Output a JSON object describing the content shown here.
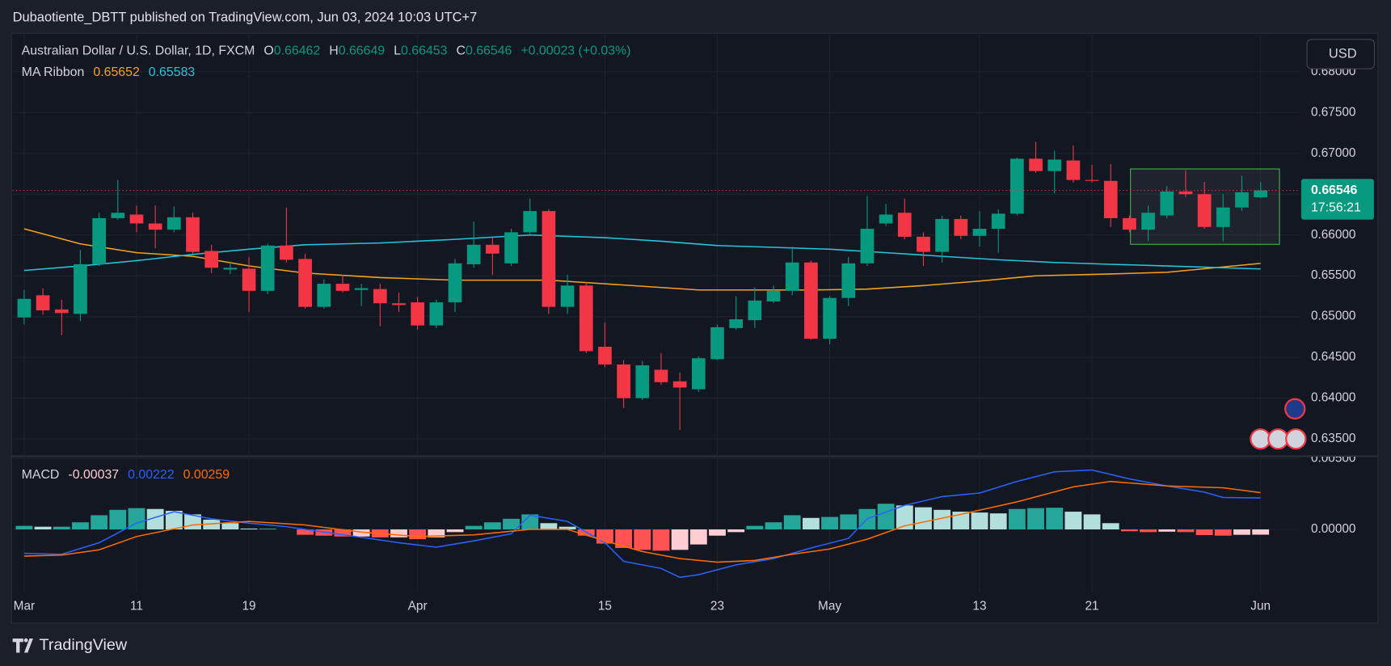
{
  "header": "Dubaotiente_DBTT published on TradingView.com, Jun 03, 2024 10:03 UTC+7",
  "currency_button": "USD",
  "footer_logo": "TradingView",
  "chart_data": [
    {
      "type": "candlestick",
      "title": "Australian Dollar / U.S. Dollar, 1D, FXCM",
      "ohlc_labels": [
        "O",
        "H",
        "L",
        "C"
      ],
      "change_label": "+0.00023 (+0.03%)",
      "countdown": "17:56:21",
      "up_color": "#089981",
      "down_color": "#f23645",
      "open": [
        0.64989,
        0.65261,
        0.65087,
        0.65033,
        0.65641,
        0.66206,
        0.6625,
        0.66141,
        0.66065,
        0.66217,
        0.65804,
        0.65576,
        0.65587,
        0.65315,
        0.6587,
        0.65706,
        0.65119,
        0.65402,
        0.65326,
        0.65337,
        0.65163,
        0.65174,
        0.64891,
        0.65174,
        0.65641,
        0.6588,
        0.65652,
        0.66033,
        0.66293,
        0.65119,
        0.6538,
        0.6463,
        0.64413,
        0.64,
        0.64348,
        0.64206,
        0.64109,
        0.64478,
        0.64859,
        0.64956,
        0.65185,
        0.65315,
        0.65663,
        0.64728,
        0.65228,
        0.65652,
        0.66141,
        0.66272,
        0.65978,
        0.65793,
        0.66196,
        0.65989,
        0.66076,
        0.66261,
        0.66935,
        0.66783,
        0.66913,
        0.66674,
        0.66663,
        0.66206,
        0.66065,
        0.66239,
        0.66533,
        0.665,
        0.66098,
        0.66337,
        0.66462
      ],
      "high": [
        0.65326,
        0.65348,
        0.65206,
        0.65815,
        0.66272,
        0.66674,
        0.66359,
        0.66359,
        0.66348,
        0.66272,
        0.6588,
        0.65674,
        0.65728,
        0.65891,
        0.66337,
        0.65772,
        0.65456,
        0.65511,
        0.65402,
        0.65402,
        0.65293,
        0.65239,
        0.65206,
        0.65706,
        0.66163,
        0.65967,
        0.66076,
        0.66446,
        0.66315,
        0.65511,
        0.65424,
        0.64924,
        0.64467,
        0.64456,
        0.64554,
        0.64315,
        0.64511,
        0.64902,
        0.6525,
        0.65359,
        0.6538,
        0.65859,
        0.65685,
        0.6525,
        0.65728,
        0.66478,
        0.6638,
        0.66446,
        0.66033,
        0.66239,
        0.66239,
        0.66293,
        0.66315,
        0.66946,
        0.67141,
        0.67033,
        0.67098,
        0.66859,
        0.6687,
        0.66239,
        0.66359,
        0.66598,
        0.66793,
        0.66652,
        0.665,
        0.66728,
        0.66649
      ],
      "low": [
        0.64902,
        0.65022,
        0.64772,
        0.64946,
        0.6562,
        0.66185,
        0.66033,
        0.65837,
        0.66033,
        0.65772,
        0.65533,
        0.65522,
        0.65054,
        0.65272,
        0.65663,
        0.65098,
        0.65098,
        0.65293,
        0.6513,
        0.6488,
        0.65054,
        0.64837,
        0.64859,
        0.65054,
        0.65598,
        0.65511,
        0.6562,
        0.66011,
        0.65033,
        0.65033,
        0.64554,
        0.6438,
        0.6388,
        0.63978,
        0.64163,
        0.63609,
        0.64076,
        0.64467,
        0.64837,
        0.64859,
        0.65163,
        0.65261,
        0.64717,
        0.64663,
        0.6513,
        0.6562,
        0.66109,
        0.65946,
        0.6562,
        0.65663,
        0.65946,
        0.65859,
        0.65783,
        0.66239,
        0.66761,
        0.66511,
        0.66641,
        0.66641,
        0.66098,
        0.66033,
        0.65924,
        0.66206,
        0.66467,
        0.66076,
        0.65924,
        0.66293,
        0.66453
      ],
      "close": [
        0.65217,
        0.65076,
        0.65043,
        0.65641,
        0.66206,
        0.66272,
        0.66141,
        0.66065,
        0.66217,
        0.65793,
        0.65598,
        0.65598,
        0.65315,
        0.6587,
        0.65696,
        0.65119,
        0.65402,
        0.65315,
        0.65348,
        0.65163,
        0.65141,
        0.64891,
        0.65174,
        0.65652,
        0.6588,
        0.65772,
        0.66033,
        0.66293,
        0.65119,
        0.6538,
        0.64576,
        0.64413,
        0.64,
        0.64402,
        0.64196,
        0.6413,
        0.64489,
        0.64869,
        0.64967,
        0.65196,
        0.65315,
        0.65663,
        0.64728,
        0.65228,
        0.65652,
        0.66076,
        0.6625,
        0.65978,
        0.65793,
        0.66196,
        0.65989,
        0.66076,
        0.66261,
        0.66935,
        0.66783,
        0.66924,
        0.66674,
        0.66663,
        0.66206,
        0.66065,
        0.66272,
        0.66533,
        0.665,
        0.66098,
        0.66337,
        0.66523,
        0.66546
      ],
      "ma_ribbon": {
        "name": "MA Ribbon",
        "series": [
          {
            "color": "#f7a21b",
            "x": [
              0,
              3,
              6,
              9,
              12,
              15,
              19,
              23,
              28,
              31,
              36,
              42,
              45,
              48,
              51,
              54,
              58,
              61,
              63,
              66
            ],
            "values": [
              0.66076,
              0.65891,
              0.65783,
              0.65739,
              0.6562,
              0.65533,
              0.65478,
              0.65446,
              0.65446,
              0.65402,
              0.65326,
              0.65326,
              0.65337,
              0.6538,
              0.65435,
              0.655,
              0.65522,
              0.65543,
              0.65587,
              0.65652
            ]
          },
          {
            "color": "#26c6da",
            "x": [
              0,
              3,
              6,
              9,
              12,
              15,
              19,
              23,
              27,
              31,
              34,
              37,
              40,
              43,
              46,
              49,
              52,
              55,
              58,
              61,
              64,
              66
            ],
            "values": [
              0.65565,
              0.6562,
              0.65685,
              0.65761,
              0.65826,
              0.6588,
              0.65902,
              0.65946,
              0.66,
              0.65967,
              0.65924,
              0.6587,
              0.65848,
              0.65826,
              0.65783,
              0.65739,
              0.65696,
              0.65663,
              0.65641,
              0.6562,
              0.65598,
              0.65583
            ]
          }
        ]
      },
      "xlim": [
        -0.615,
        68.12
      ],
      "xticks": [
        {
          "value": 0,
          "label": "Mar"
        },
        {
          "value": 6,
          "label": "11"
        },
        {
          "value": 12,
          "label": "19"
        },
        {
          "value": 21,
          "label": "Apr"
        },
        {
          "value": 31,
          "label": "15"
        },
        {
          "value": 37,
          "label": "23"
        },
        {
          "value": 43,
          "label": "May"
        },
        {
          "value": 51,
          "label": "13"
        },
        {
          "value": 57,
          "label": "21"
        },
        {
          "value": 66,
          "label": "Jun"
        }
      ],
      "ylim": [
        0.63293,
        0.68467
      ],
      "yticks": [
        {
          "value": 0.635,
          "label": "0.63500"
        },
        {
          "value": 0.64,
          "label": "0.64000"
        },
        {
          "value": 0.645,
          "label": "0.64500"
        },
        {
          "value": 0.65,
          "label": "0.65000"
        },
        {
          "value": 0.655,
          "label": "0.65500"
        },
        {
          "value": 0.66,
          "label": "0.66000"
        },
        {
          "value": 0.665,
          "label": "0.66500"
        },
        {
          "value": 0.67,
          "label": "0.67000"
        },
        {
          "value": 0.675,
          "label": "0.67500"
        },
        {
          "value": 0.68,
          "label": "0.68000"
        }
      ],
      "grid": true
    },
    {
      "type": "macd",
      "name": "MACD",
      "histogram": {
        "colors": {
          "rising_positive": "#26a69a",
          "falling_positive": "#b2dfdb",
          "falling_negative": "#ff5252",
          "rising_negative": "#ffcdd2"
        },
        "values": [
          0.00025,
          0.00019,
          0.00019,
          0.0005,
          0.001,
          0.00138,
          0.0015,
          0.00144,
          0.00131,
          0.00106,
          0.00069,
          0.00044,
          6e-05,
          6e-05,
          0,
          -0.00038,
          -0.00044,
          -0.0005,
          -0.0005,
          -0.00056,
          -0.00056,
          -0.00069,
          -0.00056,
          -0.00019,
          0.00025,
          0.0005,
          0.00075,
          0.00106,
          0.00044,
          0.00019,
          -0.00044,
          -0.001,
          -0.00131,
          -0.00144,
          -0.0015,
          -0.00144,
          -0.00106,
          -0.00044,
          -0.00019,
          0.00025,
          0.0005,
          0.001,
          0.00081,
          0.00088,
          0.00106,
          0.00144,
          0.00181,
          0.00169,
          0.00156,
          0.00138,
          0.00125,
          0.00119,
          0.00113,
          0.00144,
          0.0015,
          0.00153,
          0.00125,
          0.00106,
          0.00044,
          -0.00013,
          -0.00019,
          -0.00016,
          -0.00019,
          -0.0004,
          -0.00044,
          -0.00038,
          -0.00037
        ]
      },
      "series": [
        {
          "color": "#2962ff",
          "x": [
            0,
            2,
            4,
            6,
            8,
            10,
            12,
            14,
            16,
            18,
            20,
            22,
            24,
            26,
            27,
            29,
            31,
            32,
            34,
            35,
            36,
            38,
            40,
            42,
            44,
            45,
            47,
            49,
            51,
            53,
            55,
            57,
            59,
            61,
            63,
            64,
            66
          ],
          "values": [
            -0.00169,
            -0.00175,
            -0.00094,
            0.00044,
            0.00125,
            0.00075,
            0.00044,
            0.00019,
            -0.00019,
            -0.00056,
            -0.00094,
            -0.00125,
            -0.00081,
            -0.00031,
            0.001,
            0.00056,
            -0.00094,
            -0.00225,
            -0.00275,
            -0.00338,
            -0.00319,
            -0.0025,
            -0.00206,
            -0.00131,
            -0.00063,
            0.00075,
            0.00169,
            0.00231,
            0.00256,
            0.00338,
            0.00406,
            0.00419,
            0.00356,
            0.00306,
            0.00263,
            0.00225,
            0.00222
          ]
        },
        {
          "color": "#ff6d00",
          "x": [
            0,
            2,
            4,
            6,
            9,
            12,
            15,
            18,
            21,
            24,
            27,
            29,
            31,
            33,
            35,
            37,
            39,
            41,
            43,
            45,
            47,
            50,
            53,
            56,
            58,
            61,
            64,
            66
          ],
          "values": [
            -0.00188,
            -0.00181,
            -0.00144,
            -0.0005,
            0.00031,
            0.00056,
            0.00031,
            -0.00019,
            -0.0005,
            -0.00038,
            0,
            0,
            -0.00081,
            -0.00156,
            -0.00206,
            -0.00231,
            -0.00219,
            -0.00175,
            -0.00138,
            -0.00069,
            0.00025,
            0.00106,
            0.00194,
            0.003,
            0.00338,
            0.00306,
            0.00294,
            0.00259
          ]
        }
      ],
      "ylim": [
        -0.00444,
        0.005125
      ],
      "yticks": [
        {
          "value": 0.005,
          "label": "0.00500"
        },
        {
          "value": 0,
          "label": "0.00000"
        }
      ],
      "grid": true
    }
  ]
}
